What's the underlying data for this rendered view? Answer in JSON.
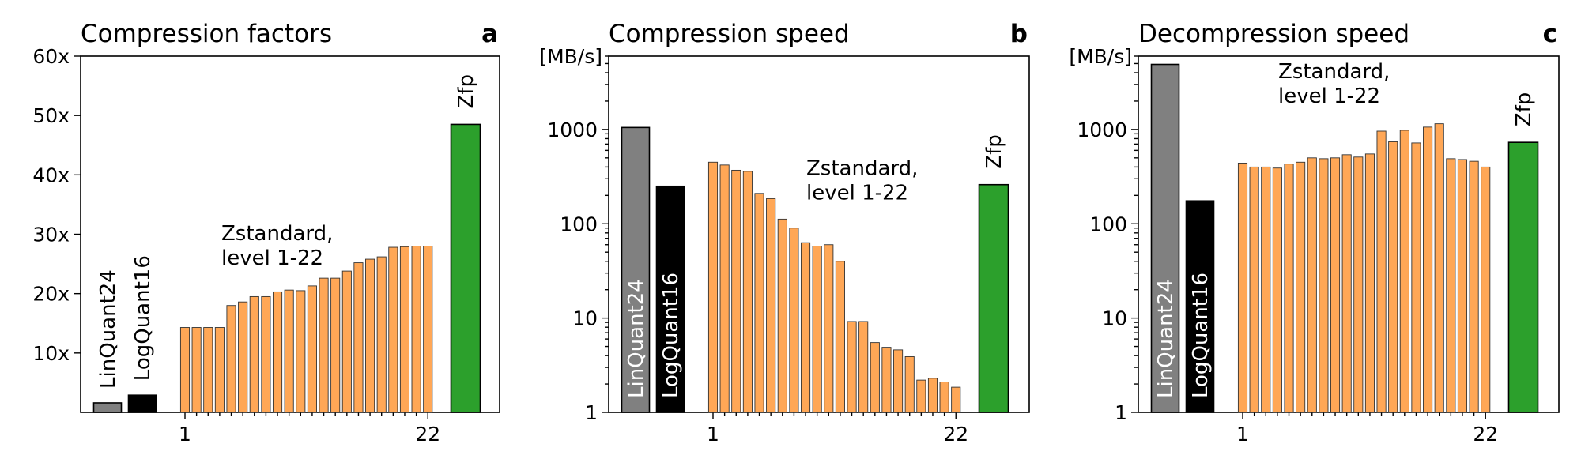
{
  "chart_data": [
    {
      "type": "bar",
      "panel_letter": "a",
      "title": "Compression factors",
      "yscale": "linear",
      "ylim": [
        0,
        60
      ],
      "ytick_values": [
        10,
        20,
        30,
        40,
        50,
        60
      ],
      "ytick_labels": [
        "10x",
        "20x",
        "30x",
        "40x",
        "50x",
        "60x"
      ],
      "unit_label": "",
      "xticks": [
        "1",
        "22"
      ],
      "annotation": [
        "Zstandard,",
        "level 1-22"
      ],
      "series": [
        {
          "name": "LinQuant24",
          "color": "#808080",
          "values": [
            1.6
          ],
          "label_color": "#000000",
          "label_inside": false
        },
        {
          "name": "LogQuant16",
          "color": "#000000",
          "values": [
            2.9
          ],
          "label_color": "#000000",
          "label_inside": false
        },
        {
          "name": "Zstandard",
          "color": "#ffa756",
          "values": [
            14.3,
            14.3,
            14.3,
            14.3,
            18.0,
            18.6,
            19.5,
            19.5,
            20.3,
            20.6,
            20.5,
            21.3,
            22.6,
            22.6,
            23.8,
            25.2,
            25.8,
            26.2,
            27.8,
            27.9,
            28.0,
            28.0
          ]
        },
        {
          "name": "Zfp",
          "color": "#2ca02c",
          "values": [
            48.5
          ],
          "label_color": "#000000",
          "label_inside": false
        }
      ]
    },
    {
      "type": "bar",
      "panel_letter": "b",
      "title": "Compression speed",
      "yscale": "log",
      "ylim": [
        1,
        6000
      ],
      "ytick_values": [
        1,
        10,
        100,
        1000
      ],
      "ytick_labels": [
        "1",
        "10",
        "100",
        "1000"
      ],
      "unit_label": "[MB/s]",
      "xticks": [
        "1",
        "22"
      ],
      "annotation": [
        "Zstandard,",
        "level 1-22"
      ],
      "series": [
        {
          "name": "LinQuant24",
          "color": "#808080",
          "values": [
            1050
          ],
          "label_color": "#ffffff",
          "label_inside": true
        },
        {
          "name": "LogQuant16",
          "color": "#000000",
          "values": [
            250
          ],
          "label_color": "#ffffff",
          "label_inside": true
        },
        {
          "name": "Zstandard",
          "color": "#ffa756",
          "values": [
            450,
            420,
            370,
            360,
            210,
            185,
            112,
            90,
            63,
            58,
            60,
            40,
            9.2,
            9.2,
            5.5,
            4.9,
            4.6,
            3.9,
            2.2,
            2.3,
            2.1,
            1.85
          ]
        },
        {
          "name": "Zfp",
          "color": "#2ca02c",
          "values": [
            260
          ],
          "label_color": "#000000",
          "label_inside": false
        }
      ]
    },
    {
      "type": "bar",
      "panel_letter": "c",
      "title": "Decompression speed",
      "yscale": "log",
      "ylim": [
        1,
        6000
      ],
      "ytick_values": [
        1,
        10,
        100,
        1000
      ],
      "ytick_labels": [
        "1",
        "10",
        "100",
        "1000"
      ],
      "unit_label": "[MB/s]",
      "xticks": [
        "1",
        "22"
      ],
      "annotation": [
        "Zstandard,",
        "level 1-22"
      ],
      "series": [
        {
          "name": "LinQuant24",
          "color": "#808080",
          "values": [
            4900
          ],
          "label_color": "#ffffff",
          "label_inside": true
        },
        {
          "name": "LogQuant16",
          "color": "#000000",
          "values": [
            175
          ],
          "label_color": "#ffffff",
          "label_inside": true
        },
        {
          "name": "Zstandard",
          "color": "#ffa756",
          "values": [
            440,
            400,
            400,
            390,
            430,
            450,
            500,
            490,
            500,
            540,
            510,
            550,
            960,
            740,
            980,
            720,
            1060,
            1150,
            490,
            480,
            460,
            400
          ]
        },
        {
          "name": "Zfp",
          "color": "#2ca02c",
          "values": [
            730
          ],
          "label_color": "#000000",
          "label_inside": false
        }
      ]
    }
  ]
}
